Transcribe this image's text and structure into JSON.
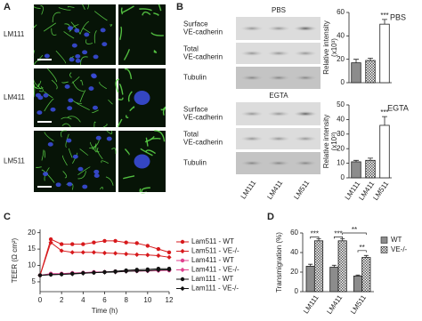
{
  "panels": {
    "a": {
      "label": "A",
      "rows": [
        "LM111",
        "LM411",
        "LM511"
      ]
    },
    "b": {
      "label": "B",
      "blots": [
        {
          "title": "PBS",
          "rows": [
            [
              "Surface",
              "VE-cadherin"
            ],
            [
              "Total",
              "VE-cadherin"
            ],
            [
              "Tubulin"
            ]
          ]
        },
        {
          "title": "EGTA",
          "rows": [
            [
              "Surface",
              "VE-cadherin"
            ],
            [
              "Total",
              "VE-cadherin"
            ],
            [
              "Tubulin"
            ]
          ]
        }
      ],
      "lanes": [
        "LM111",
        "LM411",
        "LM511"
      ]
    },
    "c": {
      "label": "C"
    },
    "d": {
      "label": "D"
    }
  },
  "chart_data": [
    {
      "type": "bar",
      "title": "PBS",
      "ylabel": [
        "Relative intensity",
        "(x10³)"
      ],
      "categories": [
        null,
        null,
        null
      ],
      "values": [
        17,
        19,
        50
      ],
      "errors": [
        3,
        2,
        4
      ],
      "colors": [
        "#8c8c8c",
        "#8c8c8c",
        "#ffffff"
      ],
      "styles": [
        "solid",
        "checker",
        "solid"
      ],
      "annotations": [
        "***"
      ],
      "ylim": [
        0,
        60
      ],
      "yticks": [
        0,
        20,
        40,
        60
      ]
    },
    {
      "type": "bar",
      "title": "EGTA",
      "ylabel": [
        "Relative intensity",
        "(x10³)"
      ],
      "categories": [
        "LM111",
        "LM411",
        "LM511"
      ],
      "values": [
        11,
        12,
        36
      ],
      "errors": [
        1,
        1.5,
        6
      ],
      "colors": [
        "#8c8c8c",
        "#8c8c8c",
        "#ffffff"
      ],
      "styles": [
        "solid",
        "checker",
        "solid"
      ],
      "annotations": [
        "***"
      ],
      "ylim": [
        0,
        50
      ],
      "yticks": [
        0,
        10,
        20,
        30,
        40,
        50
      ]
    },
    {
      "type": "line",
      "xlabel": "Time (h)",
      "ylabel": "TEER (Ω cm²)",
      "x": [
        0,
        1,
        2,
        3,
        4,
        5,
        6,
        7,
        8,
        9,
        10,
        11,
        12
      ],
      "series": [
        {
          "name": "Lam511 - WT",
          "color": "#d7191c",
          "marker": "circle",
          "values": [
            7,
            18,
            16.5,
            16.5,
            16.5,
            17,
            17.5,
            17.5,
            17,
            16.8,
            16,
            15,
            14
          ]
        },
        {
          "name": "Lam511 - VE-/-",
          "color": "#d7191c",
          "marker": "diamond",
          "values": [
            7,
            17,
            14.5,
            14,
            14,
            14,
            13.8,
            13.7,
            13.5,
            13.3,
            13.2,
            13,
            12.5
          ]
        },
        {
          "name": "Lam411 - WT",
          "color": "#e0408f",
          "marker": "circle",
          "values": [
            7,
            7.5,
            7.5,
            7.7,
            7.8,
            8,
            8,
            8.2,
            8.3,
            8.3,
            8.4,
            8.5,
            8.5
          ]
        },
        {
          "name": "Lam411 - VE-/-",
          "color": "#e0408f",
          "marker": "diamond",
          "values": [
            7,
            7.3,
            7.4,
            7.6,
            7.7,
            7.9,
            8,
            8,
            8.2,
            8.3,
            8.3,
            8.4,
            8.5
          ]
        },
        {
          "name": "Lam111 - WT",
          "color": "#111111",
          "marker": "circle",
          "values": [
            7,
            7.2,
            7.3,
            7.5,
            7.7,
            7.8,
            8,
            8.2,
            8.5,
            8.7,
            8.8,
            9,
            9
          ]
        },
        {
          "name": "Lam111 - VE-/-",
          "color": "#111111",
          "marker": "diamond",
          "values": [
            7,
            7.2,
            7.3,
            7.4,
            7.6,
            7.8,
            7.9,
            8,
            8.2,
            8.3,
            8.4,
            8.6,
            8.7
          ]
        }
      ],
      "xlim": [
        0,
        12
      ],
      "xticks": [
        0,
        2,
        4,
        6,
        8,
        10,
        12
      ],
      "ylim": [
        2,
        21
      ],
      "yticks": [
        5,
        10,
        15,
        20
      ]
    },
    {
      "type": "bar",
      "ylabel": "Transmigration (%)",
      "categories": [
        "LM111",
        "LM411",
        "LM511"
      ],
      "series": [
        {
          "name": "WT",
          "color": "#8c8c8c",
          "style": "solid",
          "values": [
            26,
            25,
            16
          ],
          "errors": [
            2,
            2,
            1
          ]
        },
        {
          "name": "VE-/-",
          "color": "#8c8c8c",
          "style": "checker",
          "values": [
            52,
            52,
            35
          ],
          "errors": [
            2,
            2,
            2
          ]
        }
      ],
      "annotations": [
        "***",
        "***",
        "**",
        "**"
      ],
      "ylim": [
        0,
        60
      ],
      "yticks": [
        0,
        20,
        40,
        60
      ]
    }
  ]
}
